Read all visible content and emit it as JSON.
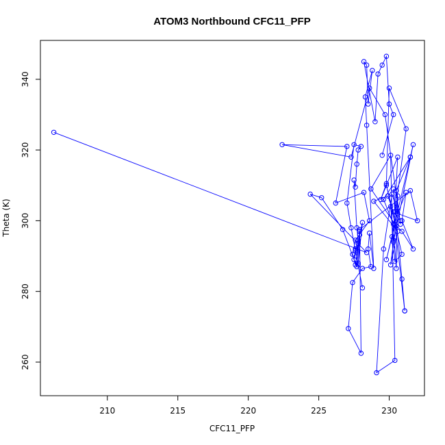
{
  "chart_data": {
    "type": "scatter",
    "title": "ATOM3 Northbound CFC11_PFP",
    "xlabel": "CFC11_PFP",
    "ylabel": "Theta (K)",
    "xlim": [
      205.25,
      232.5
    ],
    "ylim": [
      250.5,
      351.0
    ],
    "xticks": [
      210,
      215,
      220,
      225,
      230
    ],
    "yticks": [
      260,
      280,
      300,
      320,
      340
    ],
    "grid": false,
    "legend": "none",
    "point_style": "open-circle-connected",
    "color": "#0000ff",
    "series": [
      {
        "x": [
          206.2,
          228.4,
          224.4,
          225.2,
          226.7,
          227.7,
          227.9,
          231.5,
          232.0,
          230.6,
          231.2,
          230.9,
          231.7,
          230.9,
          230.4,
          231.1,
          231.1,
          230.9,
          230.3,
          230.4,
          230.6,
          229.4,
          229.8,
          230.0,
          231.2,
          230.2,
          229.8,
          231.5,
          229.6,
          230.3,
          230.5,
          230.6,
          230.3,
          230.1,
          230.4,
          230.9,
          229.8,
          230.5,
          228.7,
          230.1,
          230.4,
          229.1,
          229.6,
          230.2,
          230.8,
          230.3,
          229.9,
          228.9,
          230.6,
          230.1,
          230.3,
          231.7,
          231.5,
          230.5,
          230.8,
          229.7,
          228.6,
          227.3,
          222.4,
          227.0,
          226.2,
          228.2,
          228.6,
          227.6,
          227.4,
          227.6,
          227.9,
          228.1,
          227.8,
          227.6,
          227.8,
          227.5,
          227.6,
          227.8,
          227.7,
          227.5,
          227.6,
          227.7,
          227.8,
          228.0,
          227.5,
          227.0,
          227.3,
          228.1,
          227.8,
          227.9,
          228.0,
          227.1,
          227.4,
          228.1,
          228.7,
          228.5,
          228.6,
          228.9,
          228.4,
          228.3,
          228.8,
          228.5,
          228.4,
          228.2,
          229.0,
          229.2,
          229.5,
          229.8,
          230.0,
          230.3,
          229.5
        ],
        "y": [
          325.0,
          291.0,
          307.5,
          306.5,
          297.5,
          287.0,
          297.5,
          308.5,
          300.0,
          302.0,
          308.0,
          300.0,
          292.0,
          297.0,
          299.0,
          274.5,
          274.5,
          283.5,
          309.0,
          302.5,
          318.0,
          306.0,
          310.5,
          337.5,
          326.0,
          295.5,
          289.0,
          318.0,
          306.0,
          299.0,
          286.5,
          307.0,
          294.5,
          304.0,
          288.5,
          290.5,
          310.0,
          298.5,
          309.0,
          318.5,
          260.5,
          257.0,
          292.0,
          307.5,
          300.0,
          302.5,
          307.0,
          305.5,
          297.0,
          287.5,
          294.0,
          321.5,
          318.0,
          308.5,
          299.0,
          330.0,
          337.5,
          318.0,
          321.5,
          321.0,
          305.0,
          308.0,
          300.0,
          294.5,
          290.5,
          287.5,
          296.0,
          299.5,
          288.0,
          291.5,
          293.5,
          289.0,
          292.0,
          294.5,
          298.0,
          311.5,
          309.5,
          316.0,
          320.0,
          321.0,
          321.5,
          305.0,
          298.0,
          281.0,
          287.5,
          297.0,
          262.5,
          269.5,
          282.5,
          286.5,
          287.0,
          292.0,
          296.5,
          286.5,
          327.0,
          335.0,
          342.5,
          333.0,
          344.0,
          345.0,
          328.0,
          341.5,
          344.0,
          346.5,
          333.0,
          330.0,
          318.5
        ]
      }
    ]
  }
}
